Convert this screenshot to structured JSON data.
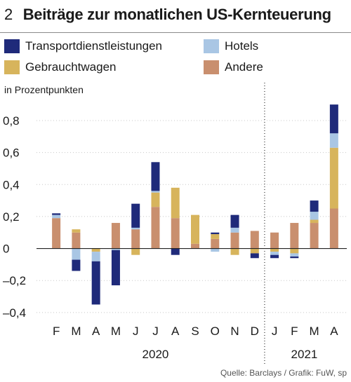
{
  "figure_number": "2",
  "title": "Beiträge zur monatlichen US-Kernteuerung",
  "unit_label": "in Prozentpunkten",
  "source": "Quelle: Barclays / Grafik: FuW, sp",
  "colors": {
    "transport": "#1f2a7a",
    "hotels": "#a9c6e4",
    "used_cars": "#d7b45c",
    "other": "#c98f6e",
    "grid": "#c8c8c8",
    "axis": "#222222"
  },
  "chart_data": {
    "type": "bar",
    "stacked": true,
    "categories": [
      "F",
      "M",
      "A",
      "M",
      "J",
      "J",
      "A",
      "S",
      "O",
      "N",
      "D",
      "J",
      "F",
      "M",
      "A"
    ],
    "year_groups": [
      {
        "label": "2020",
        "from": 0,
        "to": 10
      },
      {
        "label": "2021",
        "from": 11,
        "to": 14
      }
    ],
    "series": [
      {
        "name": "Transportdienstleistungen",
        "color_key": "transport",
        "values": [
          0.01,
          -0.07,
          -0.27,
          -0.22,
          0.15,
          0.18,
          -0.04,
          0.0,
          0.01,
          0.08,
          -0.03,
          -0.02,
          -0.01,
          0.07,
          0.18
        ]
      },
      {
        "name": "Hotels",
        "color_key": "hotels",
        "values": [
          0.02,
          -0.07,
          -0.06,
          -0.01,
          0.01,
          0.01,
          0.0,
          0.0,
          -0.02,
          0.03,
          0.0,
          -0.02,
          -0.02,
          0.05,
          0.09
        ]
      },
      {
        "name": "Gebrauchtwagen",
        "color_key": "used_cars",
        "values": [
          0.0,
          0.02,
          -0.02,
          0.0,
          -0.04,
          0.09,
          0.19,
          0.18,
          0.03,
          -0.04,
          -0.03,
          -0.02,
          -0.03,
          0.02,
          0.38
        ]
      },
      {
        "name": "Andere",
        "color_key": "other",
        "values": [
          0.19,
          0.1,
          0.0,
          0.16,
          0.12,
          0.26,
          0.19,
          0.03,
          0.06,
          0.1,
          0.11,
          0.1,
          0.16,
          0.16,
          0.25
        ]
      }
    ],
    "ylim": [
      -0.44,
      0.94
    ],
    "yticks": [
      -0.4,
      -0.2,
      0,
      0.2,
      0.4,
      0.6,
      0.8
    ],
    "ytick_labels": [
      "–0,4",
      "–0,2",
      "0",
      "0,2",
      "0,4",
      "0,6",
      "0,8"
    ],
    "xlabel": "",
    "ylabel": "in Prozentpunkten",
    "grid": true,
    "legend_position": "top"
  }
}
